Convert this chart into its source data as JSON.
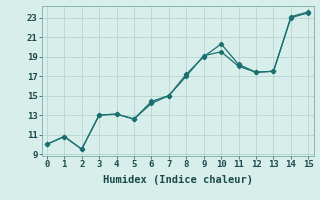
{
  "xlabel": "Humidex (Indice chaleur)",
  "background_color": "#d8eeeb",
  "line_color": "#1a7070",
  "grid_color": "#b8d4d0",
  "x_data": [
    0,
    1,
    2,
    3,
    4,
    5,
    6,
    7,
    8,
    9,
    10,
    11,
    12,
    13,
    14,
    15
  ],
  "y_line1": [
    10,
    10.8,
    9.5,
    13,
    13.1,
    12.6,
    14.4,
    15.0,
    17.2,
    19.0,
    20.3,
    18.2,
    17.4,
    17.5,
    23.1,
    23.6
  ],
  "y_line2": [
    10,
    10.8,
    9.5,
    13,
    13.1,
    12.6,
    14.2,
    15.0,
    17.0,
    19.1,
    19.5,
    18.0,
    17.4,
    17.5,
    23.0,
    23.5
  ],
  "xlim": [
    -0.3,
    15.3
  ],
  "ylim": [
    8.8,
    24.2
  ],
  "xticks": [
    0,
    1,
    2,
    3,
    4,
    5,
    6,
    7,
    8,
    9,
    10,
    11,
    12,
    13,
    14,
    15
  ],
  "yticks": [
    9,
    11,
    13,
    15,
    17,
    19,
    21,
    23
  ],
  "tick_fontsize": 6.5,
  "xlabel_fontsize": 7.5
}
